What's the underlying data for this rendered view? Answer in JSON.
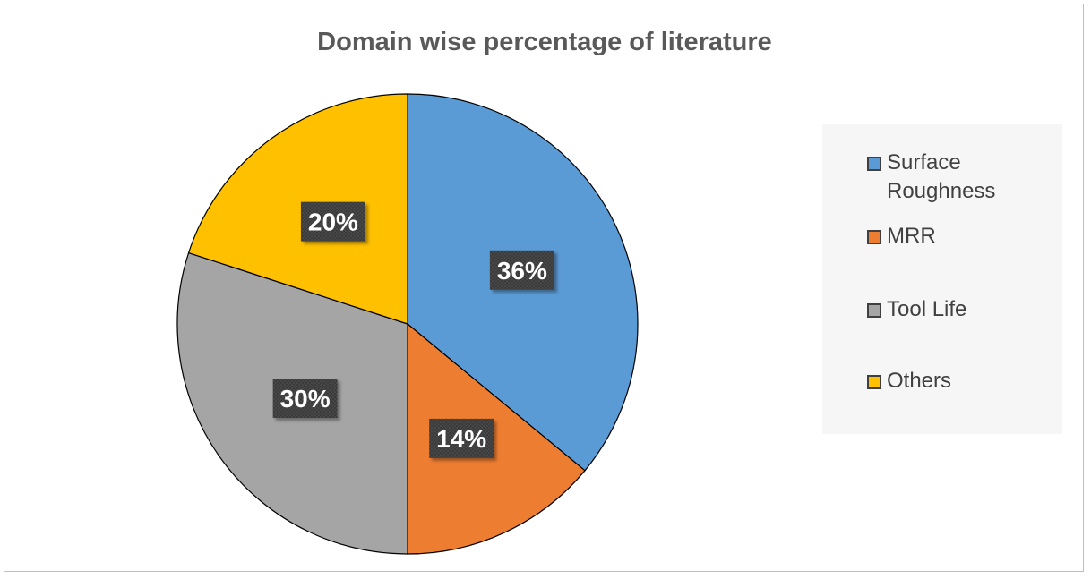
{
  "chart_data": {
    "type": "pie",
    "title": "Domain wise percentage of literature",
    "categories": [
      "Surface Roughness",
      "MRR",
      "Tool Life",
      "Others"
    ],
    "values": [
      36,
      14,
      30,
      20
    ],
    "data_labels": [
      "36%",
      "14%",
      "30%",
      "20%"
    ],
    "colors": [
      "#5b9bd5",
      "#ed7d31",
      "#a5a5a5",
      "#ffc000"
    ],
    "legend_position": "right",
    "start_angle_deg": 0,
    "direction": "clockwise"
  },
  "legend": {
    "items": [
      {
        "line1": "Surface",
        "line2": "Roughness"
      },
      {
        "line1": "MRR",
        "line2": ""
      },
      {
        "line1": "Tool Life",
        "line2": ""
      },
      {
        "line1": "Others",
        "line2": ""
      }
    ]
  }
}
